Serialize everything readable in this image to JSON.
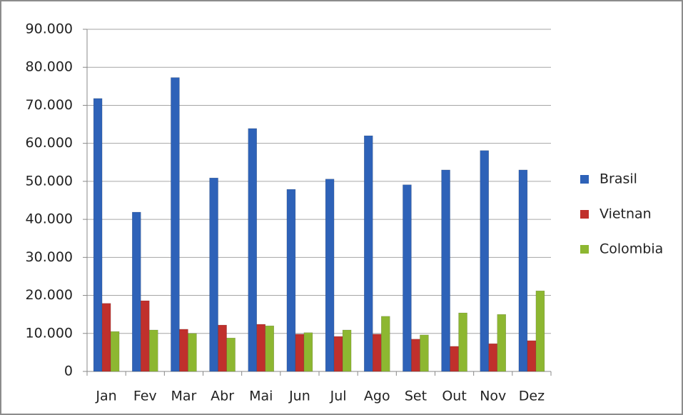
{
  "chart_data": {
    "type": "bar",
    "categories": [
      "Jan",
      "Fev",
      "Mar",
      "Abr",
      "Mai",
      "Jun",
      "Jul",
      "Ago",
      "Set",
      "Out",
      "Nov",
      "Dez"
    ],
    "series": [
      {
        "name": "Brasil",
        "color": "#2e62b8",
        "values": [
          71800,
          41900,
          77300,
          50900,
          63900,
          47900,
          50600,
          62000,
          49100,
          53000,
          58100,
          53000
        ]
      },
      {
        "name": "Vietnan",
        "color": "#c0302c",
        "values": [
          17900,
          18600,
          11100,
          12200,
          12400,
          9800,
          9200,
          9800,
          8500,
          6600,
          7300,
          8100
        ]
      },
      {
        "name": "Colombia",
        "color": "#8db731",
        "values": [
          10500,
          10900,
          10000,
          8800,
          12000,
          10200,
          10900,
          14500,
          9600,
          15400,
          15000,
          21200
        ]
      }
    ],
    "ylim": [
      0,
      90000
    ],
    "yticks": [
      0,
      {
        "value": 10000,
        "label": "10.000"
      },
      {
        "value": 20000,
        "label": "20.000"
      },
      {
        "value": 30000,
        "label": "30.000"
      },
      {
        "value": 40000,
        "label": "40.000"
      },
      {
        "value": 50000,
        "label": "50.000"
      },
      {
        "value": 60000,
        "label": "60.000"
      },
      {
        "value": 70000,
        "label": "70.000"
      },
      {
        "value": 80000,
        "label": "80.000"
      },
      {
        "value": 90000,
        "label": "90.000"
      }
    ],
    "grid": true,
    "legend": "right"
  }
}
